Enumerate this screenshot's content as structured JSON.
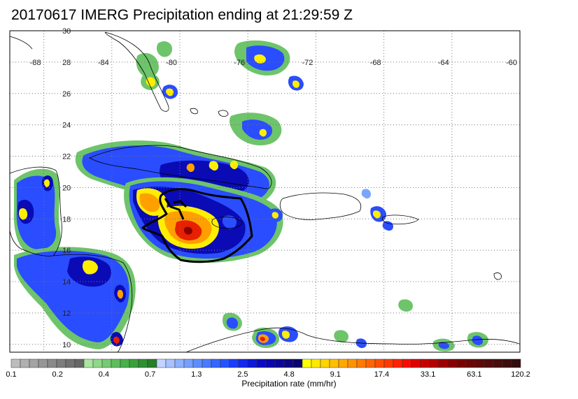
{
  "title": "20170617 IMERG Precipitation ending at 21:29:59 Z",
  "map": {
    "lon_range": [
      -90,
      -60
    ],
    "lat_range": [
      9.5,
      30
    ],
    "lon_ticks": [
      -88,
      -84,
      -80,
      -76,
      -72,
      -68,
      -64,
      -60
    ],
    "lat_ticks": [
      30,
      28,
      26,
      24,
      22,
      20,
      18,
      16,
      14,
      12,
      10
    ],
    "lon_tick_labels": [
      "-88",
      "-84",
      "-80",
      "-76",
      "-72",
      "-68",
      "-64",
      "-60"
    ],
    "lat_tick_labels": [
      "30",
      "28",
      "26",
      "24",
      "22",
      "20",
      "18",
      "16",
      "14",
      "12",
      "10"
    ],
    "gridlines": true,
    "coastline_color": "#000000",
    "storm_contour_color": "#000000"
  },
  "colorbar": {
    "title": "Precipitation rate (mm/hr)",
    "labels": [
      "0.1",
      "0.2",
      "0.4",
      "0.7",
      "1.3",
      "2.5",
      "4.8",
      "9.1",
      "17.4",
      "33.1",
      "63.1",
      "120.2"
    ],
    "colors": [
      "#bdbdbd",
      "#b0b0b0",
      "#a3a3a3",
      "#969696",
      "#8a8a8a",
      "#7d7d7d",
      "#717171",
      "#666666",
      "#a9e5a0",
      "#8fd889",
      "#75cb72",
      "#5cbe5c",
      "#46b049",
      "#37a03b",
      "#2e9030",
      "#257f27",
      "#c4d3ff",
      "#a8c1ff",
      "#8eb0ff",
      "#779fff",
      "#5f8dff",
      "#4a7aff",
      "#3567ff",
      "#2454ff",
      "#1a3dff",
      "#1329ee",
      "#0d18d8",
      "#0a0bc2",
      "#0b06ad",
      "#0c0596",
      "#0c0482",
      "#0a036e",
      "#ffff00",
      "#ffe900",
      "#ffd400",
      "#ffbf00",
      "#ffa800",
      "#ff9200",
      "#ff7c00",
      "#ff6600",
      "#ff5000",
      "#ff3a00",
      "#ff2400",
      "#f70d00",
      "#e10000",
      "#ca0000",
      "#b40000",
      "#9d0000",
      "#8a0000",
      "#7a0000",
      "#6c0404",
      "#5e0808",
      "#520a0a",
      "#470c0c",
      "#3d0d0d",
      "#330d0d"
    ]
  },
  "precip_colors": {
    "green": "#6ec46a",
    "light_blue": "#7aa6ff",
    "blue": "#2a4dff",
    "dark_blue": "#0a0bb5",
    "yellow": "#ffee00",
    "orange": "#ffa000",
    "red": "#e82000",
    "dark_red": "#8a0000"
  }
}
